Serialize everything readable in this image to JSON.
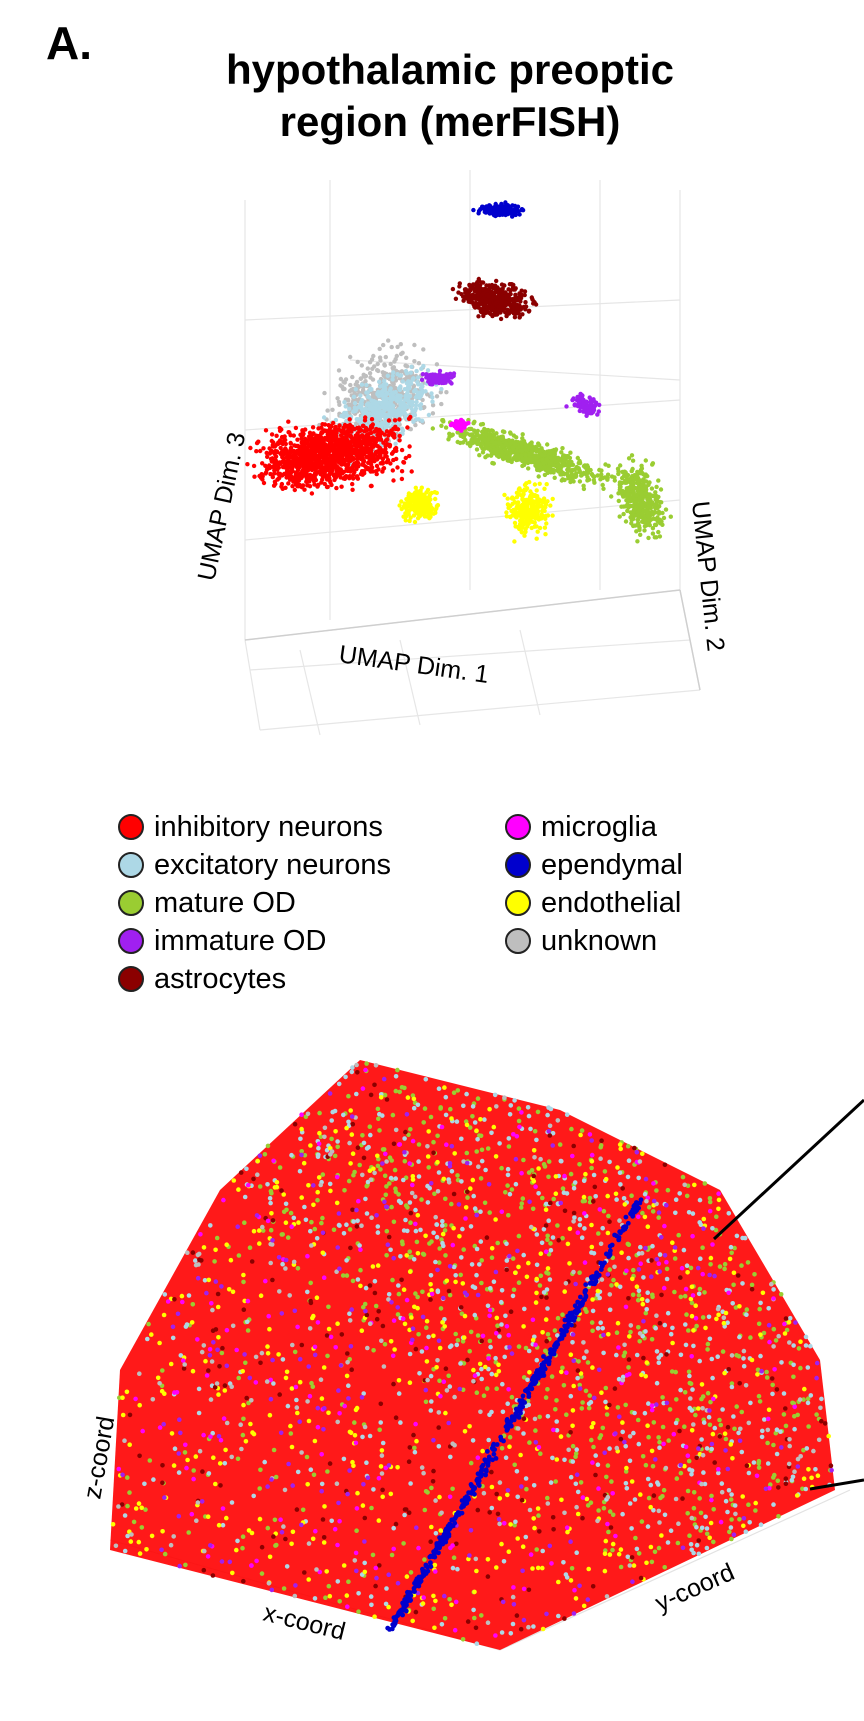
{
  "panel_label": "A.",
  "title_line1": "hypothalamic preoptic",
  "title_line2": "region (merFISH)",
  "colors": {
    "inhibitory_neurons": "#ff0000",
    "excitatory_neurons": "#add8e6",
    "mature_od": "#9acd32",
    "immature_od": "#a020f0",
    "astrocytes": "#8b0000",
    "microglia": "#ff00ff",
    "ependymal": "#0000cd",
    "endothelial": "#ffff00",
    "unknown": "#bebebe"
  },
  "legend_col1": [
    {
      "label": "inhibitory neurons",
      "color": "#ff0000"
    },
    {
      "label": "excitatory neurons",
      "color": "#add8e6"
    },
    {
      "label": "mature OD",
      "color": "#9acd32"
    },
    {
      "label": "immature OD",
      "color": "#a020f0"
    },
    {
      "label": "astrocytes",
      "color": "#8b0000"
    }
  ],
  "legend_col2": [
    {
      "label": "microglia",
      "color": "#ff00ff"
    },
    {
      "label": "ependymal",
      "color": "#0000cd"
    },
    {
      "label": "endothelial",
      "color": "#ffff00"
    },
    {
      "label": "unknown",
      "color": "#bebebe"
    }
  ],
  "umap_plot": {
    "axis_x": "UMAP Dim. 1",
    "axis_y": "UMAP Dim. 2",
    "axis_z": "UMAP Dim. 3"
  },
  "spatial_plot": {
    "axis_x": "x-coord",
    "axis_y": "y-coord",
    "axis_z": "z-coord"
  },
  "chart_data": [
    {
      "type": "scatter",
      "title": "hypothalamic preoptic region (merFISH)",
      "xlabel": "UMAP Dim. 1",
      "ylabel": "UMAP Dim. 2",
      "zlabel": "UMAP Dim. 3",
      "series": [
        "inhibitory neurons",
        "excitatory neurons",
        "mature OD",
        "immature OD",
        "astrocytes",
        "microglia",
        "ependymal",
        "endothelial",
        "unknown"
      ]
    },
    {
      "type": "scatter",
      "xlabel": "x-coord",
      "ylabel": "y-coord",
      "zlabel": "z-coord",
      "series": [
        "inhibitory neurons",
        "excitatory neurons",
        "mature OD",
        "immature OD",
        "astrocytes",
        "microglia",
        "ependymal",
        "endothelial",
        "unknown"
      ]
    }
  ]
}
